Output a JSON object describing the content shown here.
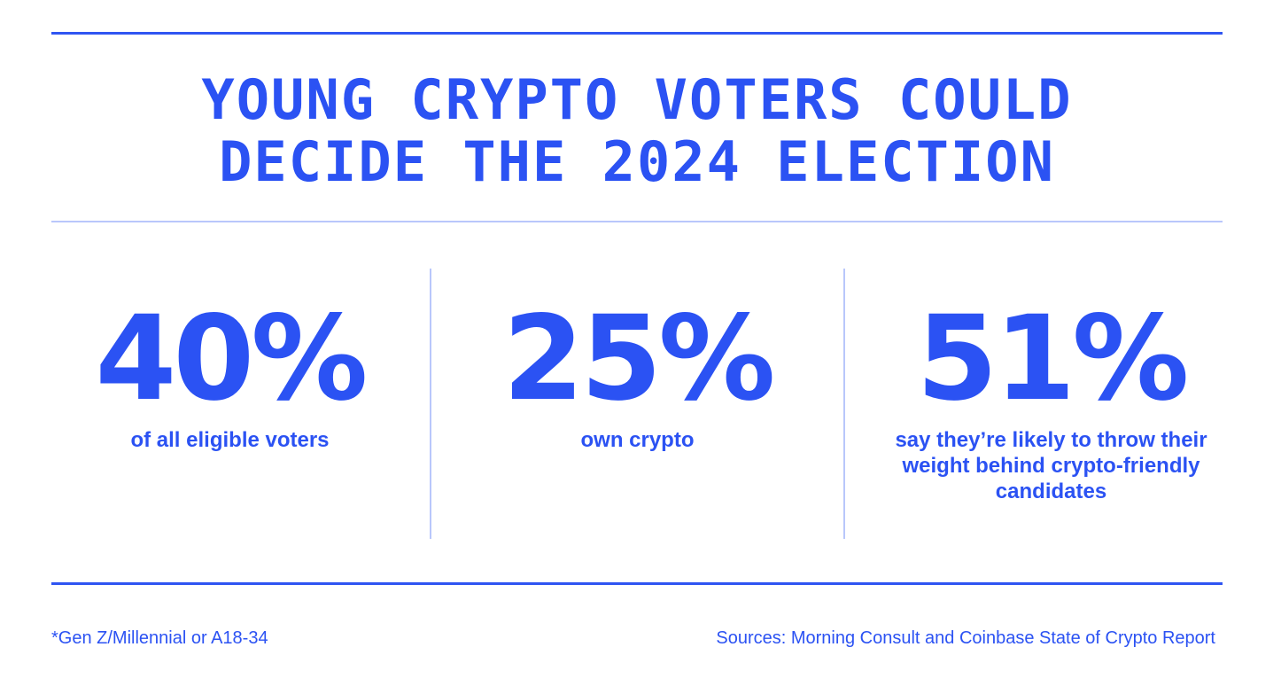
{
  "headline": {
    "line1": "YOUNG CRYPTO VOTERS COULD",
    "line2": "DECIDE THE 2024 ELECTION"
  },
  "stats": [
    {
      "value": "40%",
      "description": "of all eligible voters"
    },
    {
      "value": "25%",
      "description": "own crypto"
    },
    {
      "value": "51%",
      "description": "say they’re likely to throw their weight behind crypto-friendly candidates"
    }
  ],
  "footer": {
    "footnote": "*Gen Z/Millennial or A18-34",
    "sources": "Sources: Morning Consult and Coinbase State of Crypto Report"
  },
  "colors": {
    "accent": "#2b52f3",
    "divider_light": "#b9c7fb",
    "background": "#ffffff"
  }
}
